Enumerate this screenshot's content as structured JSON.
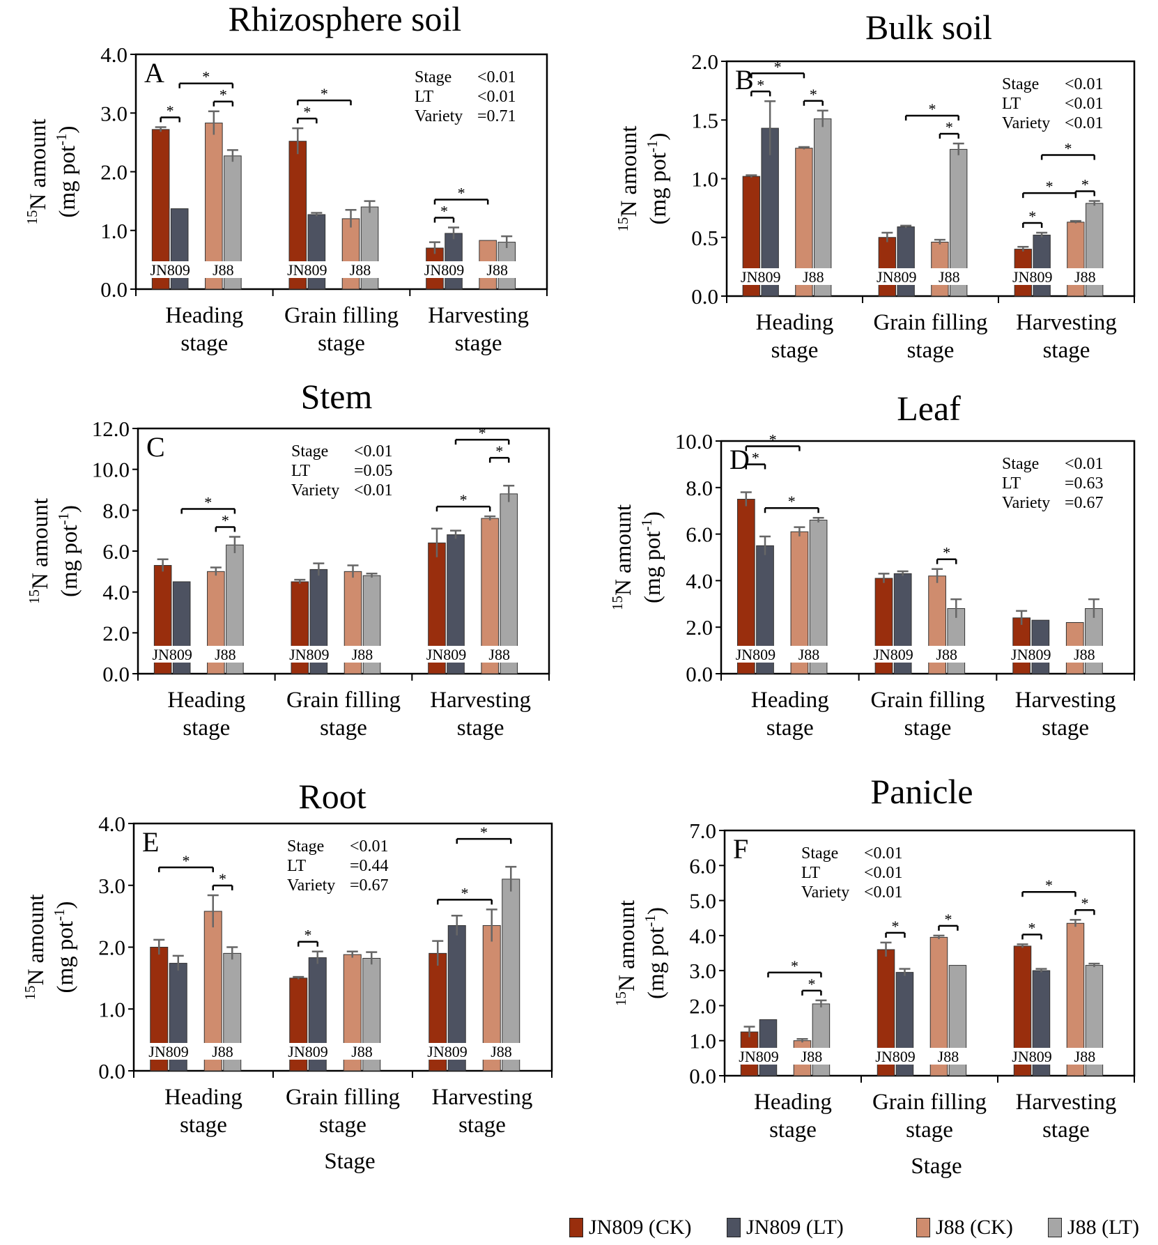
{
  "colors": {
    "JN809 (CK)": "#992e0d",
    "JN809 (LT)": "#4d5261",
    "J88 (CK)": "#cf8c6e",
    "J88 (LT)": "#a6a6a6"
  },
  "legend": {
    "items": [
      "JN809 (CK)",
      "JN809 (LT)",
      "J88 (CK)",
      "J88 (LT)"
    ]
  },
  "chart_data": [
    {
      "type": "bar",
      "title": "Rhizosphere soil",
      "panel_letter": "A",
      "ylabel_superscript": "15",
      "ylabel_main": "N amount",
      "ylabel_unit_prefix": "(mg pot",
      "ylabel_unit_sup": "-1",
      "ylabel_unit_suffix": ")",
      "xlabel": "",
      "ylim": [
        0,
        4
      ],
      "yticks": [
        "0.0",
        "1.0",
        "2.0",
        "3.0",
        "4.0"
      ],
      "categories": [
        [
          "Heading",
          "stage"
        ],
        [
          "Grain filling",
          "stage"
        ],
        [
          "Harvesting",
          "stage"
        ]
      ],
      "variety_labels": [
        "JN809",
        "J88"
      ],
      "series": [
        {
          "name": "JN809 (CK)",
          "values": [
            2.72,
            2.52,
            0.7
          ],
          "errors": [
            0.04,
            0.22,
            0.1
          ]
        },
        {
          "name": "JN809 (LT)",
          "values": [
            1.37,
            1.27,
            0.95
          ],
          "errors": [
            0.0,
            0.03,
            0.1
          ]
        },
        {
          "name": "J88 (CK)",
          "values": [
            2.83,
            1.2,
            0.83
          ],
          "errors": [
            0.2,
            0.15,
            0.0
          ]
        },
        {
          "name": "J88 (LT)",
          "values": [
            2.27,
            1.4,
            0.8
          ],
          "errors": [
            0.1,
            0.1,
            0.1
          ]
        }
      ],
      "stats": [
        [
          "Stage",
          "<0.01"
        ],
        [
          "LT",
          "<0.01"
        ],
        [
          "Variety",
          "=0.71"
        ]
      ],
      "significance": [
        {
          "group": 0,
          "from": 0,
          "to": 1,
          "label": "*",
          "level": 0
        },
        {
          "group": 0,
          "from": 2,
          "to": 3,
          "label": "*",
          "level": 0
        },
        {
          "group": 0,
          "from": 1,
          "to": 3,
          "label": "*",
          "level": 1
        },
        {
          "group": 1,
          "from": 0,
          "to": 1,
          "label": "*",
          "level": 0
        },
        {
          "group": 1,
          "from": 0,
          "to": 2,
          "label": "*",
          "level": 1
        },
        {
          "group": 2,
          "from": 0,
          "to": 1,
          "label": "*",
          "level": 0
        },
        {
          "group": 2,
          "from": 0,
          "to": 2,
          "label": "*",
          "level": 1
        }
      ]
    },
    {
      "type": "bar",
      "title": "Bulk soil",
      "panel_letter": "B",
      "ylabel_superscript": "15",
      "ylabel_main": "N amount",
      "ylabel_unit_prefix": "(mg pot",
      "ylabel_unit_sup": "-1",
      "ylabel_unit_suffix": ")",
      "xlabel": "",
      "ylim": [
        0,
        2
      ],
      "yticks": [
        "0.0",
        "0.5",
        "1.0",
        "1.5",
        "2.0"
      ],
      "categories": [
        [
          "Heading",
          "stage"
        ],
        [
          "Grain filling",
          "stage"
        ],
        [
          "Harvesting",
          "stage"
        ]
      ],
      "variety_labels": [
        "JN809",
        "J88"
      ],
      "series": [
        {
          "name": "JN809 (CK)",
          "values": [
            1.02,
            0.5,
            0.4
          ],
          "errors": [
            0.01,
            0.04,
            0.02
          ]
        },
        {
          "name": "JN809 (LT)",
          "values": [
            1.43,
            0.59,
            0.52
          ],
          "errors": [
            0.23,
            0.01,
            0.02
          ]
        },
        {
          "name": "J88 (CK)",
          "values": [
            1.26,
            0.46,
            0.63
          ],
          "errors": [
            0.01,
            0.02,
            0.01
          ]
        },
        {
          "name": "J88 (LT)",
          "values": [
            1.51,
            1.25,
            0.79
          ],
          "errors": [
            0.07,
            0.05,
            0.02
          ]
        }
      ],
      "stats": [
        [
          "Stage",
          "<0.01"
        ],
        [
          "LT",
          "<0.01"
        ],
        [
          "Variety",
          "<0.01"
        ]
      ],
      "significance": [
        {
          "group": 0,
          "from": 0,
          "to": 1,
          "label": "*",
          "level": 0
        },
        {
          "group": 0,
          "from": 0,
          "to": 2,
          "label": "*",
          "level": 1
        },
        {
          "group": 0,
          "from": 2,
          "to": 3,
          "label": "*",
          "level": 0
        },
        {
          "group": 1,
          "from": 2,
          "to": 3,
          "label": "*",
          "level": 0
        },
        {
          "group": 1,
          "from": 1,
          "to": 3,
          "label": "*",
          "level": 1
        },
        {
          "group": 2,
          "from": 0,
          "to": 1,
          "label": "*",
          "level": 0
        },
        {
          "group": 2,
          "from": 0,
          "to": 2,
          "label": "*",
          "level": 1
        },
        {
          "group": 2,
          "from": 2,
          "to": 3,
          "label": "*",
          "level": 0
        },
        {
          "group": 2,
          "from": 1,
          "to": 3,
          "label": "*",
          "level": 2
        }
      ]
    },
    {
      "type": "bar",
      "title": "Stem",
      "panel_letter": "C",
      "ylabel_superscript": "15",
      "ylabel_main": "N amount",
      "ylabel_unit_prefix": "(mg pot",
      "ylabel_unit_sup": "-1",
      "ylabel_unit_suffix": ")",
      "xlabel": "",
      "ylim": [
        0,
        12
      ],
      "yticks": [
        "0.0",
        "2.0",
        "4.0",
        "6.0",
        "8.0",
        "10.0",
        "12.0"
      ],
      "categories": [
        [
          "Heading",
          "stage"
        ],
        [
          "Grain filling",
          "stage"
        ],
        [
          "Harvesting",
          "stage"
        ]
      ],
      "variety_labels": [
        "JN809",
        "J88"
      ],
      "series": [
        {
          "name": "JN809 (CK)",
          "values": [
            5.3,
            4.5,
            6.4
          ],
          "errors": [
            0.3,
            0.1,
            0.7
          ]
        },
        {
          "name": "JN809 (LT)",
          "values": [
            4.5,
            5.1,
            6.8
          ],
          "errors": [
            0.0,
            0.3,
            0.2
          ]
        },
        {
          "name": "J88 (CK)",
          "values": [
            5.0,
            5.0,
            7.6
          ],
          "errors": [
            0.2,
            0.3,
            0.1
          ]
        },
        {
          "name": "J88 (LT)",
          "values": [
            6.3,
            4.8,
            8.8
          ],
          "errors": [
            0.4,
            0.1,
            0.4
          ]
        }
      ],
      "stats": [
        [
          "Stage",
          "<0.01"
        ],
        [
          "LT",
          "=0.05"
        ],
        [
          "Variety",
          "<0.01"
        ]
      ],
      "significance": [
        {
          "group": 0,
          "from": 2,
          "to": 3,
          "label": "*",
          "level": 0
        },
        {
          "group": 0,
          "from": 1,
          "to": 3,
          "label": "*",
          "level": 1
        },
        {
          "group": 2,
          "from": 0,
          "to": 2,
          "label": "*",
          "level": 0
        },
        {
          "group": 2,
          "from": 2,
          "to": 3,
          "label": "*",
          "level": 1
        },
        {
          "group": 2,
          "from": 1,
          "to": 3,
          "label": "*",
          "level": 2
        }
      ]
    },
    {
      "type": "bar",
      "title": "Leaf",
      "panel_letter": "D",
      "ylabel_superscript": "15",
      "ylabel_main": "N amount",
      "ylabel_unit_prefix": "(mg pot",
      "ylabel_unit_sup": "-1",
      "ylabel_unit_suffix": ")",
      "xlabel": "",
      "ylim": [
        0,
        10
      ],
      "yticks": [
        "0.0",
        "2.0",
        "4.0",
        "6.0",
        "8.0",
        "10.0"
      ],
      "categories": [
        [
          "Heading",
          "stage"
        ],
        [
          "Grain filling",
          "stage"
        ],
        [
          "Harvesting",
          "stage"
        ]
      ],
      "variety_labels": [
        "JN809",
        "J88"
      ],
      "series": [
        {
          "name": "JN809 (CK)",
          "values": [
            7.5,
            4.1,
            2.4
          ],
          "errors": [
            0.3,
            0.2,
            0.3
          ]
        },
        {
          "name": "JN809 (LT)",
          "values": [
            5.5,
            4.3,
            2.3
          ],
          "errors": [
            0.4,
            0.1,
            0.0
          ]
        },
        {
          "name": "J88 (CK)",
          "values": [
            6.1,
            4.2,
            2.2
          ],
          "errors": [
            0.2,
            0.3,
            0.0
          ]
        },
        {
          "name": "J88 (LT)",
          "values": [
            6.6,
            2.8,
            2.8
          ],
          "errors": [
            0.1,
            0.4,
            0.4
          ]
        }
      ],
      "stats": [
        [
          "Stage",
          "<0.01"
        ],
        [
          "LT",
          "=0.63"
        ],
        [
          "Variety",
          "=0.67"
        ]
      ],
      "significance": [
        {
          "group": 0,
          "from": 0,
          "to": 1,
          "label": "*",
          "level": 1
        },
        {
          "group": 0,
          "from": 0,
          "to": 2,
          "label": "*",
          "level": 2
        },
        {
          "group": 0,
          "from": 1,
          "to": 3,
          "label": "*",
          "level": 0
        },
        {
          "group": 1,
          "from": 2,
          "to": 3,
          "label": "*",
          "level": 0
        }
      ]
    },
    {
      "type": "bar",
      "title": "Root",
      "panel_letter": "E",
      "ylabel_superscript": "15",
      "ylabel_main": "N amount",
      "ylabel_unit_prefix": "(mg pot",
      "ylabel_unit_sup": "-1",
      "ylabel_unit_suffix": ")",
      "xlabel": "Stage",
      "ylim": [
        0,
        4
      ],
      "yticks": [
        "0.0",
        "1.0",
        "2.0",
        "3.0",
        "4.0"
      ],
      "categories": [
        [
          "Heading",
          "stage"
        ],
        [
          "Grain filling",
          "stage"
        ],
        [
          "Harvesting",
          "stage"
        ]
      ],
      "variety_labels": [
        "JN809",
        "J88"
      ],
      "series": [
        {
          "name": "JN809 (CK)",
          "values": [
            2.0,
            1.5,
            1.9
          ],
          "errors": [
            0.12,
            0.02,
            0.2
          ]
        },
        {
          "name": "JN809 (LT)",
          "values": [
            1.74,
            1.83,
            2.35
          ],
          "errors": [
            0.12,
            0.1,
            0.16
          ]
        },
        {
          "name": "J88 (CK)",
          "values": [
            2.58,
            1.88,
            2.35
          ],
          "errors": [
            0.26,
            0.05,
            0.26
          ]
        },
        {
          "name": "J88 (LT)",
          "values": [
            1.9,
            1.82,
            3.1
          ],
          "errors": [
            0.1,
            0.1,
            0.2
          ]
        }
      ],
      "stats": [
        [
          "Stage",
          "<0.01"
        ],
        [
          "LT",
          "=0.44"
        ],
        [
          "Variety",
          "=0.67"
        ]
      ],
      "significance": [
        {
          "group": 0,
          "from": 2,
          "to": 3,
          "label": "*",
          "level": 0
        },
        {
          "group": 0,
          "from": 0,
          "to": 2,
          "label": "*",
          "level": 1
        },
        {
          "group": 1,
          "from": 0,
          "to": 1,
          "label": "*",
          "level": 0
        },
        {
          "group": 2,
          "from": 0,
          "to": 2,
          "label": "*",
          "level": 0
        },
        {
          "group": 2,
          "from": 1,
          "to": 3,
          "label": "*",
          "level": 1
        }
      ]
    },
    {
      "type": "bar",
      "title": "Panicle",
      "panel_letter": "F",
      "ylabel_superscript": "15",
      "ylabel_main": "N amount",
      "ylabel_unit_prefix": "(mg pot",
      "ylabel_unit_sup": "-1",
      "ylabel_unit_suffix": ")",
      "xlabel": "Stage",
      "ylim": [
        0,
        7
      ],
      "yticks": [
        "0.0",
        "1.0",
        "2.0",
        "3.0",
        "4.0",
        "5.0",
        "6.0",
        "7.0"
      ],
      "categories": [
        [
          "Heading",
          "stage"
        ],
        [
          "Grain filling",
          "stage"
        ],
        [
          "Harvesting",
          "stage"
        ]
      ],
      "variety_labels": [
        "JN809",
        "J88"
      ],
      "series": [
        {
          "name": "JN809 (CK)",
          "values": [
            1.25,
            3.6,
            3.7
          ],
          "errors": [
            0.15,
            0.2,
            0.05
          ]
        },
        {
          "name": "JN809 (LT)",
          "values": [
            1.6,
            2.95,
            3.0
          ],
          "errors": [
            0.0,
            0.1,
            0.05
          ]
        },
        {
          "name": "J88 (CK)",
          "values": [
            1.0,
            3.95,
            4.35
          ],
          "errors": [
            0.05,
            0.05,
            0.1
          ]
        },
        {
          "name": "J88 (LT)",
          "values": [
            2.05,
            3.15,
            3.15
          ],
          "errors": [
            0.1,
            0.0,
            0.05
          ]
        }
      ],
      "stats": [
        [
          "Stage",
          "<0.01"
        ],
        [
          "LT",
          "<0.01"
        ],
        [
          "Variety",
          "<0.01"
        ]
      ],
      "significance": [
        {
          "group": 0,
          "from": 2,
          "to": 3,
          "label": "*",
          "level": 0
        },
        {
          "group": 0,
          "from": 1,
          "to": 3,
          "label": "*",
          "level": 1
        },
        {
          "group": 1,
          "from": 0,
          "to": 1,
          "label": "*",
          "level": 0
        },
        {
          "group": 1,
          "from": 2,
          "to": 3,
          "label": "*",
          "level": 0
        },
        {
          "group": 2,
          "from": 0,
          "to": 1,
          "label": "*",
          "level": 0
        },
        {
          "group": 2,
          "from": 2,
          "to": 3,
          "label": "*",
          "level": 0
        },
        {
          "group": 2,
          "from": 0,
          "to": 2,
          "label": "*",
          "level": 1
        }
      ]
    }
  ]
}
